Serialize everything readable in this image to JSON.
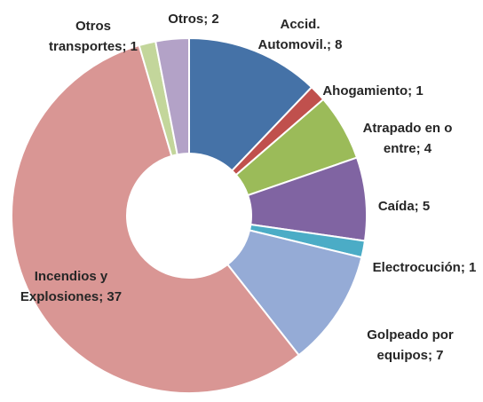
{
  "chart_data": {
    "type": "donut",
    "categories": [
      "Accid. Automovil.",
      "Ahogamiento",
      "Atrapado en o entre",
      "Caída",
      "Electrocución",
      "Golpeado por equipos",
      "Incendios y Explosiones",
      "Otros transportes",
      "Otros"
    ],
    "values": [
      8,
      1,
      4,
      5,
      1,
      7,
      37,
      1,
      2
    ],
    "value_labels": [
      [
        "Accid.",
        "Automovil.; 8"
      ],
      [
        "Ahogamiento; 1"
      ],
      [
        "Atrapado en o",
        "entre; 4"
      ],
      [
        "Caída; 5"
      ],
      [
        "Electrocución; 1"
      ],
      [
        "Golpeado por",
        "equipos; 7"
      ],
      [
        "Incendios y",
        "Explosiones; 37"
      ],
      [
        "Otros",
        "transportes; 1"
      ],
      [
        "Otros; 2"
      ]
    ],
    "colors": [
      "#4572a7",
      "#c0504d",
      "#9bbb59",
      "#8064a2",
      "#4bacc6",
      "#95abd6",
      "#d99694",
      "#c3d69b",
      "#b3a2c7"
    ]
  }
}
